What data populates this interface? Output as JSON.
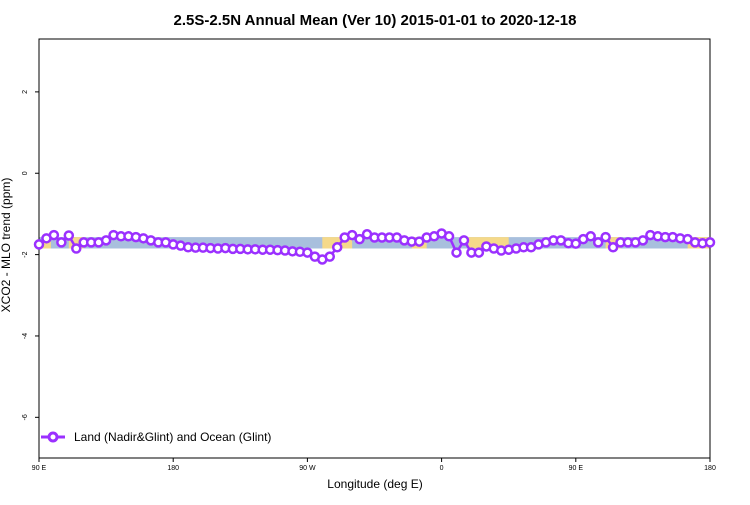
{
  "chart_data": {
    "type": "line",
    "title": "2.5S-2.5N Annual Mean (Ver 10)   2015-01-01 to 2020-12-18",
    "xlabel": "Longitude (deg E)",
    "ylabel": "XCO2 - MLO trend (ppm)",
    "xlim": [
      -90,
      360
    ],
    "ylim": [
      -7,
      3.3
    ],
    "x_ticks": [
      {
        "value": -90,
        "label": "90 E"
      },
      {
        "value": 0,
        "label": "180"
      },
      {
        "value": 90,
        "label": "90 W"
      },
      {
        "value": 180,
        "label": "0"
      },
      {
        "value": 270,
        "label": "90 E"
      },
      {
        "value": 360,
        "label": "180"
      }
    ],
    "y_ticks": [
      {
        "value": -6,
        "label": "-6"
      },
      {
        "value": -4,
        "label": "-4"
      },
      {
        "value": -2,
        "label": "-2"
      },
      {
        "value": 0,
        "label": "0"
      },
      {
        "value": 2,
        "label": "2"
      }
    ],
    "band": {
      "ymin": -1.85,
      "ymax": -1.57,
      "ocean_color": "#a8bfdd",
      "land_color": "#f5d98a",
      "land_ranges": [
        [
          -88,
          -82
        ],
        [
          -70,
          -60
        ],
        [
          100,
          120
        ],
        [
          160,
          170
        ],
        [
          198,
          225
        ],
        [
          290,
          300
        ],
        [
          345,
          360
        ]
      ]
    },
    "series": [
      {
        "name": "Land (Nadir&Glint) and Ocean (Glint)",
        "color": "#9b30ff",
        "x": [
          -90,
          -85,
          -80,
          -75,
          -70,
          -65,
          -60,
          -55,
          -50,
          -45,
          -40,
          -35,
          -30,
          -25,
          -20,
          -15,
          -10,
          -5,
          0,
          5,
          10,
          15,
          20,
          25,
          30,
          35,
          40,
          45,
          50,
          55,
          60,
          65,
          70,
          75,
          80,
          85,
          90,
          95,
          100,
          105,
          110,
          115,
          120,
          125,
          130,
          135,
          140,
          145,
          150,
          155,
          160,
          165,
          170,
          175,
          180,
          185,
          190,
          195,
          200,
          205,
          210,
          215,
          220,
          225,
          230,
          235,
          240,
          245,
          250,
          255,
          260,
          265,
          270,
          275,
          280,
          285,
          290,
          295,
          300,
          305,
          310,
          315,
          320,
          325,
          330,
          335,
          340,
          345,
          350,
          355,
          360
        ],
        "values": [
          -1.75,
          -1.6,
          -1.52,
          -1.7,
          -1.53,
          -1.85,
          -1.7,
          -1.7,
          -1.7,
          -1.65,
          -1.52,
          -1.55,
          -1.55,
          -1.57,
          -1.6,
          -1.65,
          -1.7,
          -1.7,
          -1.75,
          -1.78,
          -1.82,
          -1.83,
          -1.83,
          -1.84,
          -1.85,
          -1.84,
          -1.86,
          -1.86,
          -1.87,
          -1.87,
          -1.88,
          -1.88,
          -1.89,
          -1.9,
          -1.92,
          -1.93,
          -1.95,
          -2.05,
          -2.12,
          -2.05,
          -1.82,
          -1.58,
          -1.52,
          -1.62,
          -1.5,
          -1.58,
          -1.58,
          -1.58,
          -1.58,
          -1.65,
          -1.68,
          -1.68,
          -1.58,
          -1.55,
          -1.48,
          -1.55,
          -1.95,
          -1.65,
          -1.95,
          -1.95,
          -1.8,
          -1.85,
          -1.9,
          -1.88,
          -1.85,
          -1.82,
          -1.82,
          -1.75,
          -1.7,
          -1.65,
          -1.65,
          -1.72,
          -1.73,
          -1.62,
          -1.55,
          -1.7,
          -1.57,
          -1.82,
          -1.7,
          -1.7,
          -1.7,
          -1.65,
          -1.52,
          -1.55,
          -1.57,
          -1.57,
          -1.6,
          -1.62,
          -1.7,
          -1.72,
          -1.7
        ]
      }
    ],
    "legend": {
      "placement": "bottom-left"
    },
    "grid": false
  }
}
